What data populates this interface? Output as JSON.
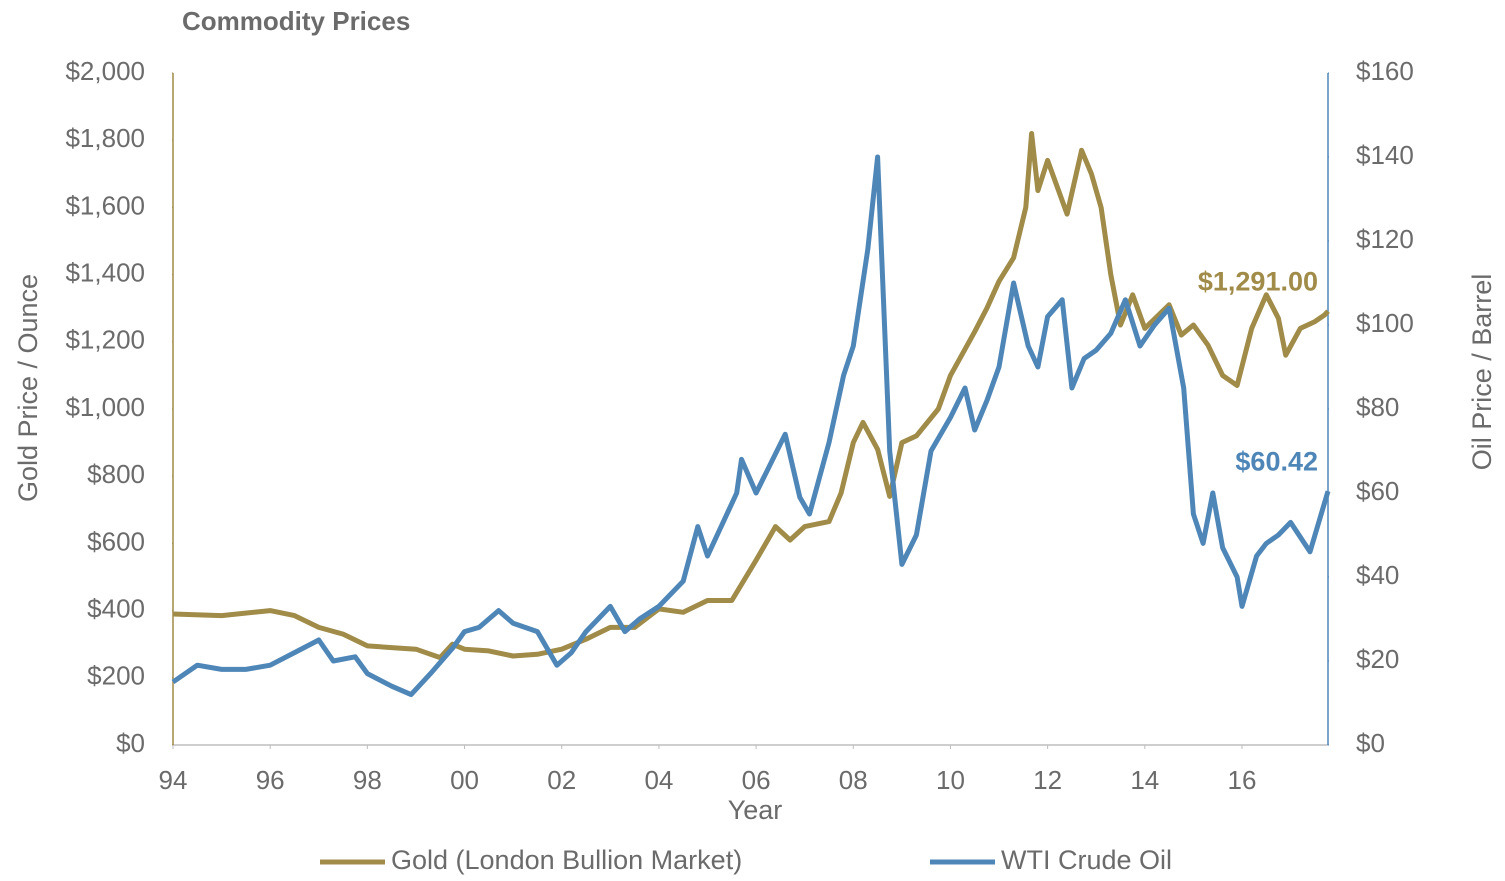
{
  "chart_data": {
    "type": "line",
    "title": "Commodity Prices",
    "xlabel": "Year",
    "ylabel": "Gold Price / Ounce",
    "y2label": "Oil Price / Barrel",
    "xlim": [
      1994,
      2017.77
    ],
    "xticks": [
      {
        "value": 1994,
        "label": "94"
      },
      {
        "value": 1996,
        "label": "96"
      },
      {
        "value": 1998,
        "label": "98"
      },
      {
        "value": 2000,
        "label": "00"
      },
      {
        "value": 2002,
        "label": "02"
      },
      {
        "value": 2004,
        "label": "04"
      },
      {
        "value": 2006,
        "label": "06"
      },
      {
        "value": 2008,
        "label": "08"
      },
      {
        "value": 2010,
        "label": "10"
      },
      {
        "value": 2012,
        "label": "12"
      },
      {
        "value": 2014,
        "label": "14"
      },
      {
        "value": 2016,
        "label": "16"
      }
    ],
    "ylim": [
      0,
      2000
    ],
    "yticks": [
      {
        "value": 0,
        "label": "$0"
      },
      {
        "value": 200,
        "label": "$200"
      },
      {
        "value": 400,
        "label": "$400"
      },
      {
        "value": 600,
        "label": "$600"
      },
      {
        "value": 800,
        "label": "$800"
      },
      {
        "value": 1000,
        "label": "$1,000"
      },
      {
        "value": 1200,
        "label": "$1,200"
      },
      {
        "value": 1400,
        "label": "$1,400"
      },
      {
        "value": 1600,
        "label": "$1,600"
      },
      {
        "value": 1800,
        "label": "$1,800"
      },
      {
        "value": 2000,
        "label": "$2,000"
      }
    ],
    "y2lim": [
      0,
      160
    ],
    "y2ticks": [
      {
        "value": 0,
        "label": "$0"
      },
      {
        "value": 20,
        "label": "$20"
      },
      {
        "value": 40,
        "label": "$40"
      },
      {
        "value": 60,
        "label": "$60"
      },
      {
        "value": 80,
        "label": "$80"
      },
      {
        "value": 100,
        "label": "$100"
      },
      {
        "value": 120,
        "label": "$120"
      },
      {
        "value": 140,
        "label": "$140"
      },
      {
        "value": 160,
        "label": "$160"
      }
    ],
    "grid": false,
    "legend": "bottom",
    "series": [
      {
        "name": "Gold (London Bullion Market)",
        "color": "#a08b48",
        "axis": "y",
        "last_label": "$1,291.00",
        "x": [
          1994,
          1995,
          1996,
          1996.5,
          1997,
          1997.5,
          1998,
          1998.5,
          1999,
          1999.5,
          1999.75,
          2000,
          2000.5,
          2001,
          2001.5,
          2002,
          2002.5,
          2003,
          2003.5,
          2004,
          2004.5,
          2005,
          2005.5,
          2006,
          2006.4,
          2006.7,
          2007,
          2007.5,
          2007.75,
          2008,
          2008.2,
          2008.5,
          2008.75,
          2009,
          2009.3,
          2009.75,
          2010,
          2010.5,
          2010.75,
          2011,
          2011.3,
          2011.55,
          2011.67,
          2011.8,
          2012,
          2012.4,
          2012.7,
          2012.9,
          2013.1,
          2013.3,
          2013.5,
          2013.75,
          2014,
          2014.5,
          2014.75,
          2015,
          2015.3,
          2015.6,
          2015.9,
          2016.2,
          2016.5,
          2016.75,
          2016.9,
          2017.2,
          2017.5,
          2017.7,
          2017.77
        ],
        "values": [
          390,
          385,
          400,
          385,
          350,
          330,
          295,
          290,
          285,
          260,
          300,
          285,
          280,
          265,
          270,
          285,
          315,
          350,
          350,
          405,
          395,
          430,
          430,
          550,
          650,
          610,
          650,
          665,
          750,
          900,
          960,
          880,
          740,
          900,
          920,
          1000,
          1100,
          1230,
          1300,
          1380,
          1450,
          1600,
          1820,
          1650,
          1740,
          1580,
          1770,
          1700,
          1600,
          1400,
          1250,
          1340,
          1240,
          1310,
          1220,
          1250,
          1190,
          1100,
          1070,
          1240,
          1340,
          1270,
          1160,
          1240,
          1260,
          1280,
          1291
        ]
      },
      {
        "name": "WTI Crude Oil",
        "color": "#4f86b8",
        "axis": "y2",
        "last_label": "$60.42",
        "x": [
          1994,
          1994.5,
          1995,
          1995.5,
          1996,
          1996.5,
          1997,
          1997.3,
          1997.75,
          1998,
          1998.5,
          1998.9,
          1999.3,
          1999.75,
          2000,
          2000.3,
          2000.7,
          2001,
          2001.5,
          2001.9,
          2002.2,
          2002.5,
          2003,
          2003.3,
          2003.6,
          2004,
          2004.5,
          2004.8,
          2005,
          2005.6,
          2005.7,
          2006,
          2006.6,
          2006.9,
          2007.1,
          2007.5,
          2007.8,
          2008,
          2008.3,
          2008.5,
          2008.75,
          2009,
          2009.3,
          2009.6,
          2010,
          2010.3,
          2010.5,
          2010.75,
          2011,
          2011.3,
          2011.6,
          2011.8,
          2012,
          2012.3,
          2012.5,
          2012.75,
          2013,
          2013.3,
          2013.6,
          2013.9,
          2014.2,
          2014.5,
          2014.8,
          2015,
          2015.2,
          2015.4,
          2015.6,
          2015.9,
          2016,
          2016.3,
          2016.5,
          2016.75,
          2017,
          2017.4,
          2017.77
        ],
        "values": [
          15,
          19,
          18,
          18,
          19,
          22,
          25,
          20,
          21,
          17,
          14,
          12,
          17,
          23,
          27,
          28,
          32,
          29,
          27,
          19,
          22,
          27,
          33,
          27,
          30,
          33,
          39,
          52,
          45,
          60,
          68,
          60,
          74,
          59,
          55,
          72,
          88,
          95,
          118,
          140,
          70,
          43,
          50,
          70,
          78,
          85,
          75,
          82,
          90,
          110,
          95,
          90,
          102,
          106,
          85,
          92,
          94,
          98,
          106,
          95,
          100,
          104,
          85,
          55,
          48,
          60,
          47,
          40,
          33,
          45,
          48,
          50,
          53,
          46,
          60.42
        ]
      }
    ]
  }
}
